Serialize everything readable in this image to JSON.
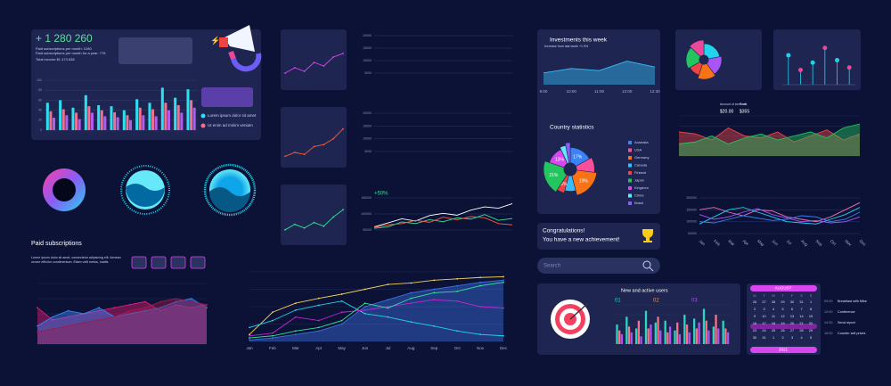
{
  "summary": {
    "total": "+ 1 280 260",
    "line1": "Paid subscriptions per month: 1280",
    "line2": "Paid subscriptions per month for a year: 776",
    "line3": "Total income $1 473 638"
  },
  "legend": [
    "Lorem ipsum dolor sit amet",
    "Ut enim ad minim veniam"
  ],
  "paid_subscriptions": {
    "title": "Paid subscriptions",
    "text": [
      "Lorem ipsum dolor sit amet, consectetur adipiscing elit. Aenean",
      "ornare efficitur condimentum. Etiam velit metus, mattis"
    ]
  },
  "investments": {
    "title": "Investments this week",
    "subtitle": "Increase from last week +1.9%"
  },
  "country_statistics": {
    "title": "Country statistics"
  },
  "achievement": {
    "title": "Congratulations!",
    "text": "You have a new achievement!"
  },
  "search": {
    "placeholder": "Search"
  },
  "users": {
    "title": "New and active users",
    "steps": [
      "01",
      "02",
      "03"
    ]
  },
  "calendar": {
    "month": "AUGUST",
    "year": "2021",
    "weekdays": [
      "M",
      "T",
      "W",
      "T",
      "F",
      "S",
      "S"
    ],
    "days": [
      "26",
      "27",
      "28",
      "29",
      "30",
      "31",
      "1",
      "2",
      "3",
      "4",
      "5",
      "6",
      "7",
      "8",
      "9",
      "10",
      "11",
      "12",
      "13",
      "14",
      "15",
      "16",
      "17",
      "18",
      "19",
      "20",
      "21",
      "22",
      "23",
      "24",
      "25",
      "26",
      "27",
      "28",
      "29",
      "30",
      "31",
      "1",
      "2",
      "3",
      "4",
      "5"
    ]
  },
  "events": [
    {
      "time": "09:00",
      "text": "Breakfast with Mike"
    },
    {
      "time": "12:00",
      "text": "Conference"
    },
    {
      "time": "14:30",
      "text": "Send report"
    },
    {
      "time": "16:00",
      "text": "Counter sell prices"
    }
  ],
  "services": {
    "label1": "Amount of services",
    "value1": "$20.00",
    "label2": "Profit",
    "value2": "$355"
  },
  "growth": "+50%",
  "chart_data": [
    {
      "type": "bar",
      "categories": [
        null,
        null,
        null,
        null,
        null,
        null,
        null,
        null,
        null,
        null,
        null,
        null
      ],
      "ylim": [
        0,
        100
      ],
      "yticks": [
        0,
        20,
        40,
        60,
        80,
        100
      ],
      "grid": true,
      "series": [
        {
          "color": "#2de0f0",
          "values": [
            55,
            60,
            45,
            70,
            50,
            48,
            40,
            62,
            55,
            85,
            65,
            82
          ]
        },
        {
          "color": "#f0708e",
          "values": [
            38,
            42,
            35,
            48,
            40,
            36,
            30,
            45,
            42,
            55,
            50,
            60
          ]
        },
        {
          "color": "#b05cf0",
          "values": [
            25,
            30,
            22,
            35,
            28,
            26,
            20,
            30,
            28,
            40,
            35,
            45
          ]
        }
      ]
    },
    {
      "type": "line",
      "ylim": [
        0,
        100
      ],
      "markers": true,
      "series": [
        {
          "color": "#e040fb",
          "values": [
            25,
            40,
            30,
            55,
            45,
            70,
            80
          ]
        }
      ]
    },
    {
      "type": "line",
      "ylim": [
        0,
        100
      ],
      "markers": true,
      "series": [
        {
          "color": "#ff5a36",
          "values": [
            15,
            25,
            20,
            40,
            45,
            60,
            85
          ]
        }
      ]
    },
    {
      "type": "line",
      "ylim": [
        0,
        100
      ],
      "markers": true,
      "series": [
        {
          "color": "#2ee59d",
          "values": [
            20,
            35,
            25,
            40,
            30,
            55,
            75
          ]
        }
      ]
    },
    {
      "type": "line",
      "ylim": [
        5000,
        20000
      ],
      "yticks": [
        5000,
        10000,
        15000,
        20000
      ],
      "grid": true,
      "series": []
    },
    {
      "type": "line",
      "ylim": [
        5000,
        20000
      ],
      "yticks": [
        5000,
        10000,
        15000,
        20000
      ],
      "grid": true,
      "series": []
    },
    {
      "type": "line",
      "ylim": [
        50000,
        150000
      ],
      "yticks": [
        50000,
        100000,
        150000
      ],
      "grid": true,
      "series": [
        {
          "color": "#ffffff",
          "values": [
            60000,
            72000,
            85000,
            78000,
            95000,
            102000,
            96000,
            112000,
            122000,
            118000,
            132000
          ]
        },
        {
          "color": "#2ee59d",
          "values": [
            55000,
            60000,
            75000,
            70000,
            82000,
            76000,
            88000,
            84000,
            98000,
            80000,
            86000
          ]
        },
        {
          "color": "#ff5a36",
          "values": [
            58000,
            66000,
            70000,
            80000,
            74000,
            90000,
            82000,
            92000,
            88000,
            70000,
            66000
          ]
        }
      ]
    },
    {
      "type": "line",
      "categories": [
        "Jan",
        "Feb",
        "Mar",
        "Apr",
        "May",
        "Jun",
        "Jul",
        "Aug",
        "Sep",
        "Oct",
        "Nov",
        "Dec"
      ],
      "ylim": [
        0,
        100
      ],
      "grid": true,
      "markers": true,
      "series": [
        {
          "color": "#3b6fe0",
          "area": true,
          "values": [
            2,
            5,
            10,
            15,
            25,
            50,
            60,
            70,
            75,
            80,
            85,
            88
          ]
        },
        {
          "color": "#f5d35a",
          "values": [
            10,
            42,
            55,
            62,
            68,
            75,
            82,
            84,
            88,
            90,
            92,
            93
          ]
        },
        {
          "color": "#22d3ee",
          "values": [
            20,
            30,
            45,
            52,
            58,
            40,
            35,
            28,
            22,
            15,
            10,
            8
          ]
        },
        {
          "color": "#c026d3",
          "values": [
            8,
            12,
            35,
            30,
            42,
            45,
            50,
            55,
            60,
            58,
            50,
            48
          ]
        },
        {
          "color": "#2ee59d",
          "values": [
            5,
            8,
            15,
            20,
            30,
            55,
            48,
            62,
            70,
            72,
            80,
            85
          ]
        }
      ]
    },
    {
      "type": "line",
      "categories": [
        "9:00",
        "10:00",
        "11:00",
        "12:00",
        "12:30"
      ],
      "ylim": [
        0,
        100
      ],
      "series": [
        {
          "color": "#38bdf8",
          "area": true,
          "values": [
            40,
            55,
            48,
            80,
            60
          ]
        }
      ]
    },
    {
      "type": "pie",
      "donut": true,
      "legend": true,
      "categories": [
        "Australia",
        "USA",
        "Germany",
        "Canada",
        "Finland",
        "Japan",
        "Kingdom",
        "China",
        "Brasil"
      ],
      "values": [
        17,
        10,
        19,
        8,
        5,
        21,
        13,
        4,
        3
      ],
      "value_labels": [
        "17%",
        null,
        "19%",
        null,
        "5%",
        "21%",
        "13%",
        null,
        null
      ],
      "colors": [
        "#3b82f6",
        "#ff4f9a",
        "#f97316",
        "#38bdf8",
        "#ef4444",
        "#22c55e",
        "#d946ef",
        "#67e8f9",
        "#8b5cf6"
      ]
    },
    {
      "type": "bar",
      "categories": [
        null,
        null,
        null,
        null,
        null,
        null,
        null,
        null,
        null,
        null,
        null,
        null
      ],
      "ylim": [
        0,
        100
      ],
      "grid": true,
      "series": [
        {
          "color": "#2dd4bf",
          "values": [
            50,
            70,
            40,
            85,
            55,
            60,
            35,
            75,
            65,
            90,
            45,
            60
          ]
        },
        {
          "color": "#fb7185",
          "values": [
            35,
            45,
            60,
            40,
            70,
            30,
            55,
            50,
            40,
            60,
            75,
            40
          ]
        },
        {
          "color": "#a855f7",
          "values": [
            25,
            30,
            20,
            50,
            35,
            45,
            25,
            30,
            55,
            35,
            40,
            30
          ]
        }
      ]
    },
    {
      "type": "line",
      "ylim": [
        0,
        100
      ],
      "grid": true,
      "series": [
        {
          "color": "#ef4444",
          "area": true,
          "values": [
            60,
            55,
            40,
            70,
            50,
            45,
            60,
            35,
            50,
            65,
            40,
            55
          ]
        },
        {
          "color": "#22c55e",
          "area": true,
          "values": [
            30,
            35,
            50,
            30,
            45,
            55,
            40,
            50,
            60,
            45,
            70,
            80
          ]
        }
      ]
    },
    {
      "type": "line",
      "categories": [
        "Jan",
        "Feb",
        "Mar",
        "Apr",
        "May",
        "Jun",
        "Jul",
        "Aug",
        "Sep",
        "Oct",
        "Nov",
        "Dec"
      ],
      "rotate_labels": true,
      "ylim": [
        50000,
        200000
      ],
      "yticks": [
        50000,
        100000,
        150000,
        200000
      ],
      "grid": true,
      "series": [
        {
          "color": "#f472b6",
          "values": [
            150000,
            160000,
            140000,
            125000,
            150000,
            145000,
            120000,
            110000,
            100000,
            120000,
            150000,
            180000
          ]
        },
        {
          "color": "#22d3ee",
          "values": [
            90000,
            120000,
            150000,
            160000,
            140000,
            120000,
            100000,
            95000,
            90000,
            110000,
            130000,
            160000
          ]
        },
        {
          "color": "#a855f7",
          "values": [
            130000,
            110000,
            120000,
            140000,
            155000,
            130000,
            115000,
            100000,
            105000,
            95000,
            100000,
            120000
          ]
        },
        {
          "color": "#3b82f6",
          "values": [
            100000,
            95000,
            110000,
            125000,
            115000,
            105000,
            110000,
            125000,
            120000,
            100000,
            110000,
            140000
          ]
        }
      ]
    },
    {
      "type": "pie",
      "donut": true,
      "values": [
        22,
        18,
        15,
        12,
        20,
        13
      ],
      "colors": [
        "#22d3ee",
        "#a855f7",
        "#f97316",
        "#ef4444",
        "#22c55e",
        "#ec4899"
      ]
    },
    {
      "type": "lollipop",
      "ylim": [
        0,
        100
      ],
      "values": [
        60,
        30,
        45,
        75,
        50,
        35
      ],
      "color": "#22d3ee"
    },
    {
      "type": "line",
      "ylim": [
        0,
        100
      ],
      "grid": true,
      "markers": true,
      "series": [
        {
          "color": "#e11d74",
          "area": true,
          "values": [
            60,
            40,
            45,
            50,
            55,
            60,
            65,
            70,
            55,
            65,
            60,
            65
          ]
        },
        {
          "color": "#3b82f6",
          "area": true,
          "values": [
            30,
            45,
            55,
            50,
            60,
            45,
            50,
            55,
            60,
            70,
            75,
            60
          ]
        },
        {
          "color": "#9b1c4f",
          "area": true,
          "values": [
            20,
            25,
            30,
            35,
            40,
            45,
            55,
            60,
            70,
            75,
            70,
            65
          ]
        }
      ]
    }
  ]
}
